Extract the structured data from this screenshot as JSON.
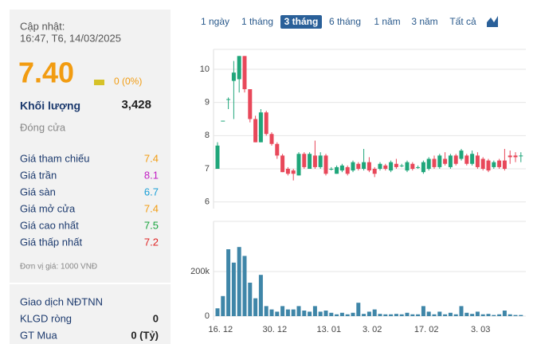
{
  "panel": {
    "update_label": "Cập nhật:",
    "update_time": "16:47, T6, 14/03/2025",
    "price": "7.40",
    "price_color": "#f29c11",
    "change": "0 (0%)",
    "volume_label": "Khối lượng",
    "volume": "3,428",
    "close_label": "Đóng cửa",
    "rows": [
      {
        "label": "Giá tham chiếu",
        "value": "7.4",
        "color": "#f29c11"
      },
      {
        "label": "Giá trần",
        "value": "8.1",
        "color": "#c21fc4"
      },
      {
        "label": "Giá sàn",
        "value": "6.7",
        "color": "#1a9fd6"
      },
      {
        "label": "Giá mở cửa",
        "value": "7.4",
        "color": "#f29c11"
      },
      {
        "label": "Giá cao nhất",
        "value": "7.5",
        "color": "#15a33a"
      },
      {
        "label": "Giá thấp nhất",
        "value": "7.2",
        "color": "#e02424"
      }
    ],
    "unit_note": "Đơn vị giá: 1000 VNĐ",
    "foreign_title": "Giao dịch NĐTNN",
    "foreign_rows": [
      {
        "label": "KLGD ròng",
        "value": "0"
      },
      {
        "label": "GT Mua",
        "value": "0 (Tỷ)"
      }
    ]
  },
  "tabs": {
    "items": [
      "1 ngày",
      "1 tháng",
      "3 tháng",
      "6 tháng",
      "1 năm",
      "3 năm",
      "Tất cả"
    ],
    "active": 2
  },
  "chart_data": [
    {
      "type": "candlestick",
      "up_color": "#1fa67a",
      "down_color": "#e8485a",
      "grid": true,
      "categories": [
        null,
        "16. 12",
        null,
        null,
        null,
        null,
        null,
        null,
        null,
        null,
        null,
        "30. 12",
        null,
        null,
        null,
        null,
        null,
        null,
        null,
        null,
        null,
        "13. 01",
        null,
        null,
        null,
        null,
        null,
        null,
        null,
        "3. 02",
        null,
        null,
        null,
        null,
        null,
        null,
        null,
        null,
        null,
        "17. 02",
        null,
        null,
        null,
        null,
        null,
        null,
        null,
        null,
        null,
        "3. 03",
        null,
        null,
        null,
        null,
        null,
        null,
        null
      ],
      "open": [
        7.0,
        8.45,
        9.1,
        9.65,
        9.7,
        10.4,
        9.4,
        8.5,
        7.8,
        8.7,
        8.05,
        7.75,
        7.4,
        7.0,
        6.95,
        6.8,
        7.45,
        7.0,
        7.4,
        7.05,
        7.4,
        7.0,
        6.85,
        6.95,
        7.05,
        6.95,
        7.15,
        7.0,
        7.2,
        7.0,
        7.0,
        7.1,
        6.95,
        7.15,
        7.1,
        6.95,
        7.15,
        7.05,
        6.9,
        7.0,
        7.3,
        7.05,
        7.3,
        7.05,
        7.4,
        7.3,
        7.4,
        7.15,
        7.4,
        7.3,
        7.25,
        7.05,
        7.25,
        7.25,
        7.4,
        7.4,
        7.4
      ],
      "high": [
        7.8,
        8.45,
        9.15,
        10.25,
        10.4,
        10.4,
        9.4,
        8.6,
        8.8,
        8.75,
        8.1,
        7.8,
        7.45,
        7.05,
        7.0,
        7.5,
        7.5,
        7.5,
        7.85,
        7.5,
        7.45,
        7.05,
        7.1,
        7.15,
        7.1,
        7.25,
        7.2,
        7.6,
        7.35,
        7.05,
        7.2,
        7.15,
        7.25,
        7.3,
        7.15,
        7.25,
        7.2,
        7.1,
        7.25,
        7.35,
        7.4,
        7.45,
        7.5,
        7.45,
        7.45,
        7.6,
        7.45,
        7.55,
        7.5,
        7.35,
        7.3,
        7.25,
        7.3,
        7.6,
        7.55,
        7.5,
        7.5
      ],
      "low": [
        7.0,
        8.45,
        8.8,
        8.5,
        9.3,
        9.3,
        8.4,
        7.8,
        7.8,
        8.0,
        7.7,
        7.3,
        6.9,
        6.8,
        6.65,
        6.8,
        7.0,
        7.0,
        7.0,
        7.0,
        6.8,
        6.95,
        6.85,
        6.9,
        6.8,
        6.9,
        6.95,
        6.95,
        6.9,
        6.75,
        6.95,
        6.95,
        6.9,
        7.0,
        7.05,
        6.9,
        6.95,
        7.0,
        6.85,
        6.95,
        7.0,
        7.0,
        7.1,
        7.0,
        7.1,
        7.25,
        7.1,
        7.1,
        7.0,
        6.95,
        6.9,
        7.0,
        7.0,
        6.95,
        7.15,
        7.2,
        7.2
      ],
      "close": [
        7.7,
        8.45,
        9.1,
        9.9,
        10.4,
        9.4,
        8.5,
        7.8,
        8.7,
        8.05,
        7.75,
        7.4,
        6.9,
        6.85,
        6.85,
        7.45,
        7.05,
        7.45,
        7.05,
        7.4,
        6.85,
        7.0,
        7.05,
        7.1,
        6.85,
        7.2,
        7.0,
        7.2,
        6.95,
        6.85,
        7.15,
        7.0,
        7.2,
        7.05,
        7.1,
        7.2,
        7.0,
        7.05,
        7.2,
        7.3,
        7.05,
        7.4,
        7.15,
        7.4,
        7.15,
        7.55,
        7.15,
        7.45,
        7.05,
        7.0,
        6.95,
        7.2,
        7.05,
        7.0,
        7.35,
        7.35,
        7.4
      ],
      "ylim": [
        5.8,
        10.6
      ],
      "yticks": [
        6,
        7,
        8,
        9,
        10
      ]
    },
    {
      "type": "bar",
      "color": "#3f86a8",
      "values": [
        35000,
        90000,
        300000,
        240000,
        310000,
        270000,
        150000,
        80000,
        185000,
        45000,
        30000,
        20000,
        45000,
        30000,
        30000,
        45000,
        25000,
        20000,
        45000,
        20000,
        25000,
        15000,
        8000,
        15000,
        8000,
        15000,
        60000,
        10000,
        20000,
        30000,
        10000,
        8000,
        8000,
        10000,
        8000,
        15000,
        8000,
        8000,
        45000,
        20000,
        8000,
        20000,
        8000,
        15000,
        8000,
        45000,
        15000,
        10000,
        20000,
        8000,
        10000,
        5000,
        8000,
        25000,
        8000,
        5000,
        5000
      ],
      "ylim": [
        0,
        425000
      ],
      "yticks": [
        0,
        {
          "value": 200000,
          "label": "200k"
        }
      ]
    }
  ]
}
